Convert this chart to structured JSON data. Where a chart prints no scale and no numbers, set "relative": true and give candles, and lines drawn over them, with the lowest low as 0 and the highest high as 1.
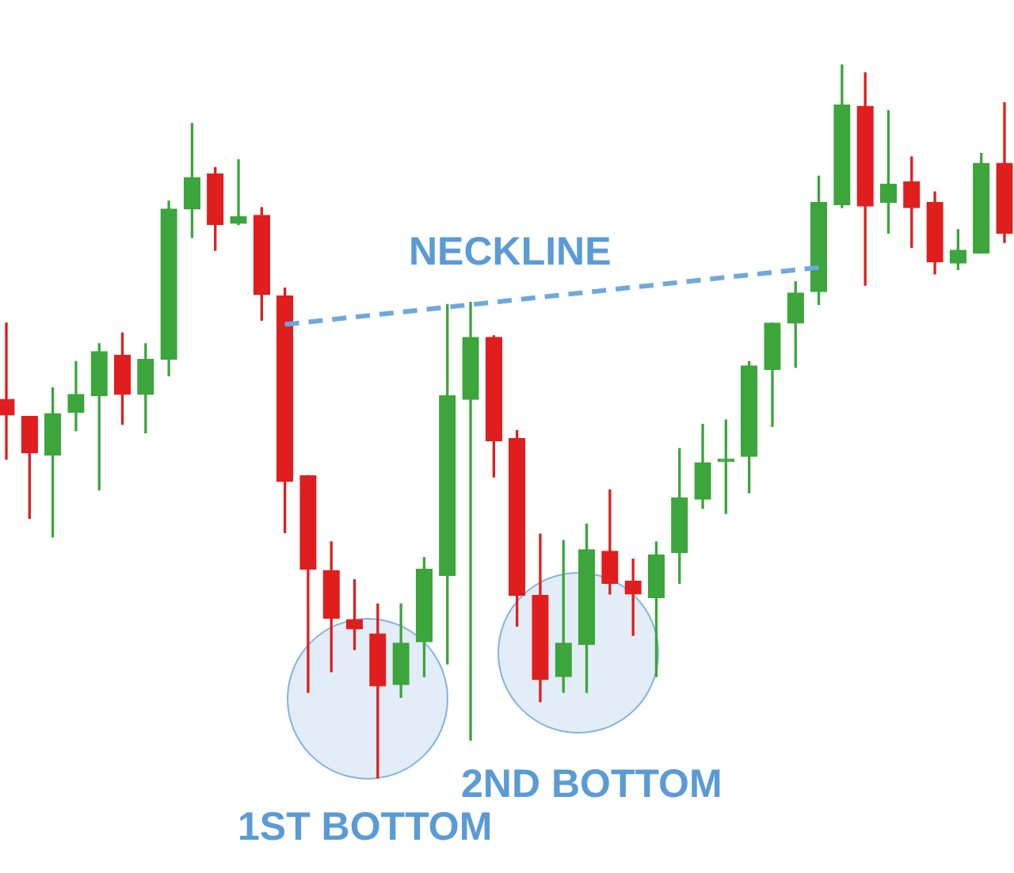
{
  "chart_data": {
    "type": "candlestick",
    "relative": true,
    "categories": [
      null,
      null,
      null,
      null,
      null,
      null,
      null,
      null,
      null,
      null,
      null,
      null,
      null,
      null,
      null,
      null,
      null,
      null,
      null,
      null,
      null,
      null,
      null,
      null,
      null,
      null,
      null,
      null,
      null,
      null,
      null,
      null,
      null,
      null,
      null,
      null,
      null,
      null,
      null,
      null,
      null,
      null,
      null,
      null
    ],
    "series": [
      {
        "ohlc": [
          [
            0.531,
            0.638,
            0.447,
            0.509
          ],
          [
            0.507,
            0.507,
            0.364,
            0.456
          ],
          [
            0.453,
            0.547,
            0.338,
            0.511
          ],
          [
            0.513,
            0.584,
            0.487,
            0.538
          ],
          [
            0.536,
            0.609,
            0.404,
            0.598
          ],
          [
            0.593,
            0.624,
            0.496,
            0.538
          ],
          [
            0.538,
            0.609,
            0.484,
            0.587
          ],
          [
            0.587,
            0.809,
            0.564,
            0.798
          ],
          [
            0.798,
            0.918,
            0.758,
            0.842
          ],
          [
            0.847,
            0.856,
            0.74,
            0.776
          ],
          [
            0.778,
            0.867,
            0.776,
            0.787
          ],
          [
            0.789,
            0.8,
            0.642,
            0.678
          ],
          [
            0.676,
            0.687,
            0.344,
            0.416
          ],
          [
            0.424,
            0.424,
            0.12,
            0.293
          ],
          [
            0.291,
            0.331,
            0.149,
            0.224
          ],
          [
            0.222,
            0.278,
            0.18,
            0.209
          ],
          [
            0.202,
            0.244,
            0,
            0.129
          ],
          [
            0.131,
            0.244,
            0.113,
            0.189
          ],
          [
            0.191,
            0.309,
            0.142,
            0.293
          ],
          [
            0.284,
            0.664,
            0.16,
            0.536
          ],
          [
            0.531,
            0.667,
            0.053,
            0.618
          ],
          [
            0.618,
            0.62,
            0.422,
            0.473
          ],
          [
            0.476,
            0.487,
            0.213,
            0.256
          ],
          [
            0.256,
            0.342,
            0.107,
            0.138
          ],
          [
            0.142,
            0.333,
            0.12,
            0.189
          ],
          [
            0.187,
            0.356,
            0.12,
            0.32
          ],
          [
            0.318,
            0.404,
            0.258,
            0.273
          ],
          [
            0.276,
            0.307,
            0.2,
            0.258
          ],
          [
            0.253,
            0.331,
            0.142,
            0.313
          ],
          [
            0.316,
            0.462,
            0.273,
            0.393
          ],
          [
            0.391,
            0.496,
            0.378,
            0.442
          ],
          [
            0.444,
            0.502,
            0.371,
            0.447
          ],
          [
            0.451,
            0.584,
            0.4,
            0.578
          ],
          [
            0.573,
            0.638,
            0.493,
            0.638
          ],
          [
            0.638,
            0.696,
            0.576,
            0.68
          ],
          [
            0.682,
            0.844,
            0.664,
            0.807
          ],
          [
            0.804,
            1,
            0.8,
            0.944
          ],
          [
            0.942,
            0.989,
            0.691,
            0.802
          ],
          [
            0.807,
            0.936,
            0.764,
            0.833
          ],
          [
            0.836,
            0.871,
            0.744,
            0.8
          ],
          [
            0.807,
            0.822,
            0.707,
            0.724
          ],
          [
            0.722,
            0.769,
            0.713,
            0.74
          ],
          [
            0.736,
            0.876,
            0.736,
            0.862
          ],
          [
            0.862,
            0.947,
            0.751,
            0.764
          ]
        ],
        "colors": [
          "#e01e1e",
          "#e01e1e",
          "#3ca53c",
          "#3ca53c",
          "#3ca53c",
          "#e01e1e",
          "#3ca53c",
          "#3ca53c",
          "#3ca53c",
          "#e01e1e",
          "#3ca53c",
          "#e01e1e",
          "#e01e1e",
          "#e01e1e",
          "#e01e1e",
          "#e01e1e",
          "#e01e1e",
          "#3ca53c",
          "#3ca53c",
          "#3ca53c",
          "#3ca53c",
          "#e01e1e",
          "#e01e1e",
          "#e01e1e",
          "#3ca53c",
          "#3ca53c",
          "#e01e1e",
          "#e01e1e",
          "#3ca53c",
          "#3ca53c",
          "#3ca53c",
          "#3ca53c",
          "#3ca53c",
          "#3ca53c",
          "#3ca53c",
          "#3ca53c",
          "#3ca53c",
          "#e01e1e",
          "#3ca53c",
          "#e01e1e",
          "#e01e1e",
          "#3ca53c",
          "#3ca53c",
          "#e01e1e"
        ]
      },
      {
        "type": "line",
        "color": "#6fa8dc",
        "line_style": "dashed",
        "values": [
          null,
          null,
          null,
          null,
          null,
          null,
          null,
          null,
          null,
          null,
          null,
          null,
          0.636,
          null,
          null,
          null,
          null,
          null,
          null,
          null,
          null,
          null,
          null,
          null,
          null,
          null,
          null,
          null,
          null,
          null,
          null,
          null,
          null,
          null,
          null,
          0.716,
          null,
          null,
          null,
          null,
          null,
          null,
          null,
          null
        ]
      }
    ],
    "annotations": [
      "NECKLINE",
      "1ST BOTTOM",
      "2ND BOTTOM"
    ]
  }
}
